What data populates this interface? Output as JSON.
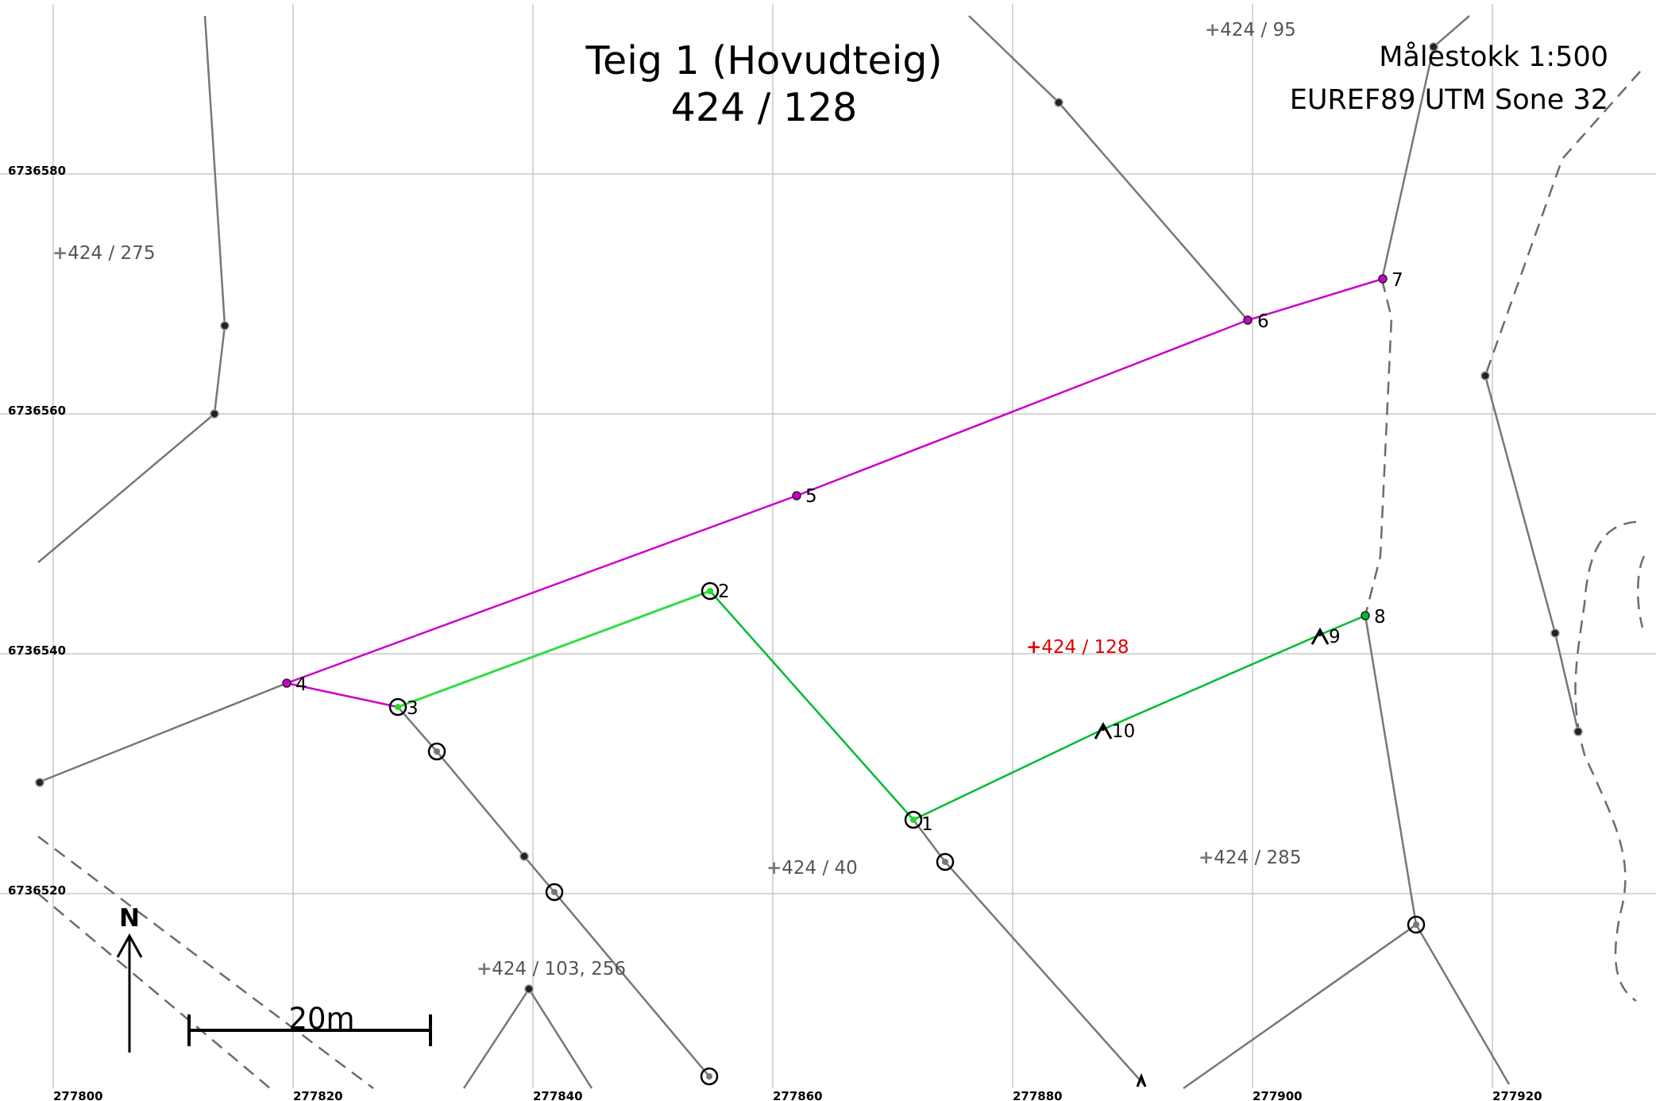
{
  "title": {
    "line1": "Teig 1 (Hovudteig)",
    "line2": "424  /  128"
  },
  "info": {
    "scale": "Målestokk 1:500",
    "crs": "EUREF89 UTM Sone 32"
  },
  "axes": {
    "x_labels": [
      "277800",
      "277820",
      "277840",
      "277860",
      "277880",
      "277900",
      "277920"
    ],
    "y_labels": [
      "6736580",
      "6736560",
      "6736540",
      "6736520"
    ]
  },
  "parcel_labels": {
    "p95": "424 / 95",
    "p275": "424 / 275",
    "p128": "424 / 128",
    "p40": "424 / 40",
    "p285": "424 / 285",
    "p103": "424 / 103, 256"
  },
  "points": [
    "1",
    "2",
    "3",
    "4",
    "5",
    "6",
    "7",
    "8",
    "9",
    "10"
  ],
  "scalebar": {
    "label": "20m"
  },
  "north": {
    "label": "N"
  },
  "colors": {
    "boundary_magenta": "#cc00cc",
    "boundary_green": "#00bb33",
    "neighbor_line": "#7a7480",
    "grid": "#c8c8c8",
    "main_label": "#e00000"
  }
}
